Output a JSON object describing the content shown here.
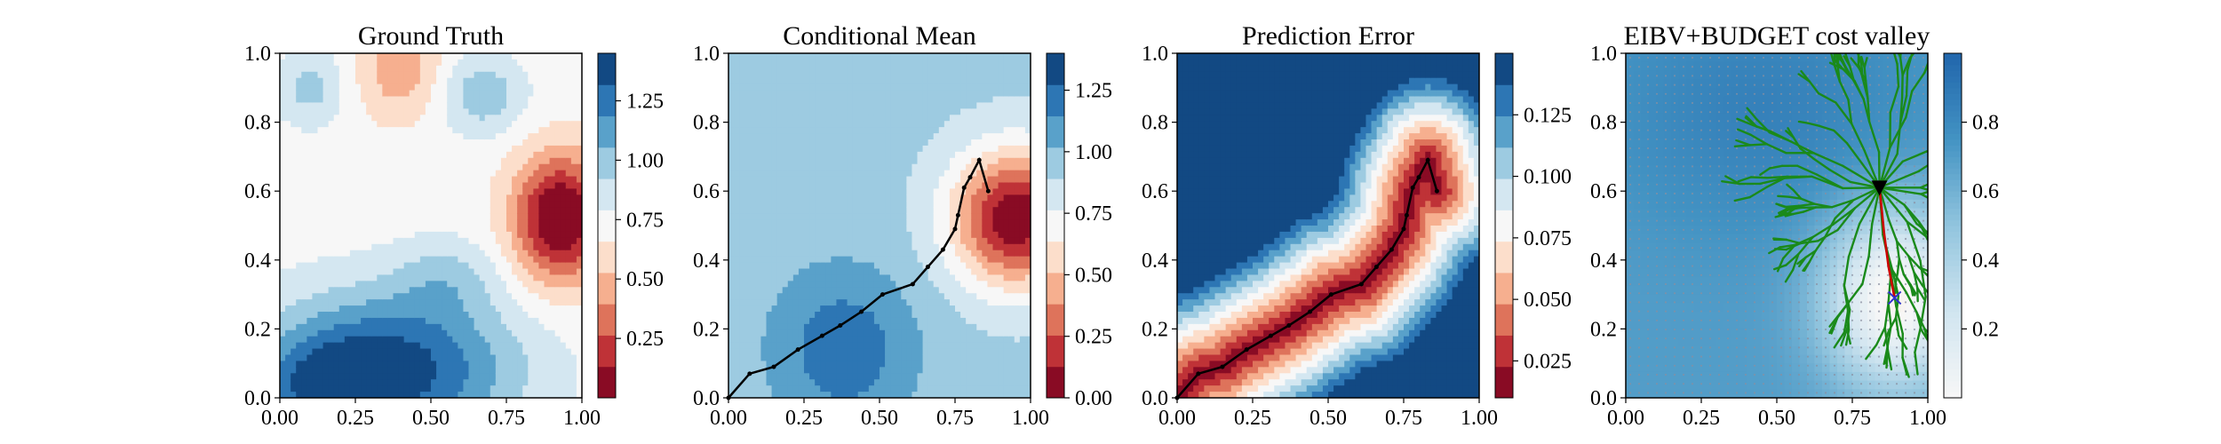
{
  "figure": {
    "chart_data": [
      {
        "type": "heatmap",
        "title": "Ground Truth",
        "xlabel": "",
        "ylabel": "",
        "xlim": [
          0,
          1
        ],
        "ylim": [
          0,
          1
        ],
        "xticks": [
          "0.00",
          "0.25",
          "0.50",
          "0.75",
          "1.00"
        ],
        "yticks": [
          "0.0",
          "0.2",
          "0.4",
          "0.6",
          "0.8",
          "1.0"
        ],
        "colormap": "RdBu (discrete levels)",
        "colorbar": {
          "range": [
            0.0,
            1.45
          ],
          "ticks": [
            "0.25",
            "0.50",
            "0.75",
            "1.00",
            "1.25"
          ]
        },
        "field": {
          "base": 0.72,
          "blobs": [
            {
              "x": 0.93,
              "y": 0.52,
              "amp": -0.78,
              "sx": 0.11,
              "sy": 0.13
            },
            {
              "x": 0.4,
              "y": 0.95,
              "amp": -0.28,
              "sx": 0.1,
              "sy": 0.1
            },
            {
              "x": 0.35,
              "y": 0.08,
              "amp": 0.7,
              "sx": 0.3,
              "sy": 0.16
            },
            {
              "x": 0.15,
              "y": 0.03,
              "amp": 0.3,
              "sx": 0.12,
              "sy": 0.08
            },
            {
              "x": 0.1,
              "y": 0.9,
              "amp": 0.25,
              "sx": 0.08,
              "sy": 0.08
            },
            {
              "x": 0.67,
              "y": 0.88,
              "amp": 0.3,
              "sx": 0.1,
              "sy": 0.08
            },
            {
              "x": 0.55,
              "y": 0.35,
              "amp": 0.18,
              "sx": 0.12,
              "sy": 0.08
            }
          ]
        }
      },
      {
        "type": "heatmap",
        "title": "Conditional Mean",
        "xlabel": "",
        "ylabel": "",
        "xlim": [
          0,
          1
        ],
        "ylim": [
          0,
          1
        ],
        "xticks": [
          "0.00",
          "0.25",
          "0.50",
          "0.75",
          "1.00"
        ],
        "yticks": [
          "0.0",
          "0.2",
          "0.4",
          "0.6",
          "0.8",
          "1.0"
        ],
        "colormap": "RdBu (discrete levels)",
        "colorbar": {
          "range": [
            0.0,
            1.4
          ],
          "ticks": [
            "0.00",
            "0.25",
            "0.50",
            "0.75",
            "1.00",
            "1.25"
          ]
        },
        "field": {
          "base": 0.93,
          "blobs": [
            {
              "x": 0.95,
              "y": 0.52,
              "amp": -0.92,
              "sx": 0.15,
              "sy": 0.14
            },
            {
              "x": 0.38,
              "y": 0.14,
              "amp": 0.3,
              "sx": 0.17,
              "sy": 0.17
            }
          ]
        },
        "path": [
          [
            0,
            0
          ],
          [
            0.07,
            0.07
          ],
          [
            0.15,
            0.09
          ],
          [
            0.23,
            0.14
          ],
          [
            0.31,
            0.18
          ],
          [
            0.37,
            0.21
          ],
          [
            0.44,
            0.25
          ],
          [
            0.51,
            0.3
          ],
          [
            0.61,
            0.33
          ],
          [
            0.66,
            0.38
          ],
          [
            0.71,
            0.43
          ],
          [
            0.75,
            0.49
          ],
          [
            0.76,
            0.53
          ],
          [
            0.78,
            0.61
          ],
          [
            0.8,
            0.64
          ],
          [
            0.83,
            0.69
          ],
          [
            0.86,
            0.6
          ]
        ]
      },
      {
        "type": "heatmap",
        "title": "Prediction Error",
        "xlabel": "",
        "ylabel": "",
        "xlim": [
          0,
          1
        ],
        "ylim": [
          0,
          1
        ],
        "xticks": [
          "0.00",
          "0.25",
          "0.50",
          "0.75",
          "1.00"
        ],
        "yticks": [
          "0.0",
          "0.2",
          "0.4",
          "0.6",
          "0.8",
          "1.0"
        ],
        "colormap": "RdBu (discrete levels)",
        "colorbar": {
          "range": [
            0.01,
            0.15
          ],
          "ticks": [
            "0.025",
            "0.050",
            "0.075",
            "0.100",
            "0.125"
          ]
        },
        "field": {
          "distance_to_path": true,
          "min": 0.012,
          "max": 0.15,
          "scale": 0.26
        },
        "path": [
          [
            0,
            0
          ],
          [
            0.07,
            0.07
          ],
          [
            0.15,
            0.09
          ],
          [
            0.23,
            0.14
          ],
          [
            0.31,
            0.18
          ],
          [
            0.37,
            0.21
          ],
          [
            0.44,
            0.25
          ],
          [
            0.51,
            0.3
          ],
          [
            0.61,
            0.33
          ],
          [
            0.66,
            0.38
          ],
          [
            0.71,
            0.43
          ],
          [
            0.75,
            0.49
          ],
          [
            0.76,
            0.53
          ],
          [
            0.78,
            0.61
          ],
          [
            0.8,
            0.64
          ],
          [
            0.83,
            0.69
          ],
          [
            0.86,
            0.6
          ]
        ]
      },
      {
        "type": "heatmap",
        "title": "EIBV+BUDGET cost valley",
        "xlabel": "",
        "ylabel": "",
        "xlim": [
          0,
          1
        ],
        "ylim": [
          0,
          1
        ],
        "xticks": [
          "0.00",
          "0.25",
          "0.50",
          "0.75",
          "1.00"
        ],
        "yticks": [
          "0.0",
          "0.2",
          "0.4",
          "0.6",
          "0.8",
          "1.0"
        ],
        "colormap": "RdBu (continuous)",
        "colorbar": {
          "range": [
            0.0,
            1.0
          ],
          "ticks": [
            "0.2",
            "0.4",
            "0.6",
            "0.8"
          ]
        },
        "current_location": [
          0.84,
          0.61
        ],
        "target_location": [
          0.89,
          0.29
        ],
        "tree_color": "#1a8a1a",
        "selected_path_color": "#cc0000",
        "marker_color": "#000000",
        "target_marker_color": "#3030d0"
      }
    ]
  }
}
